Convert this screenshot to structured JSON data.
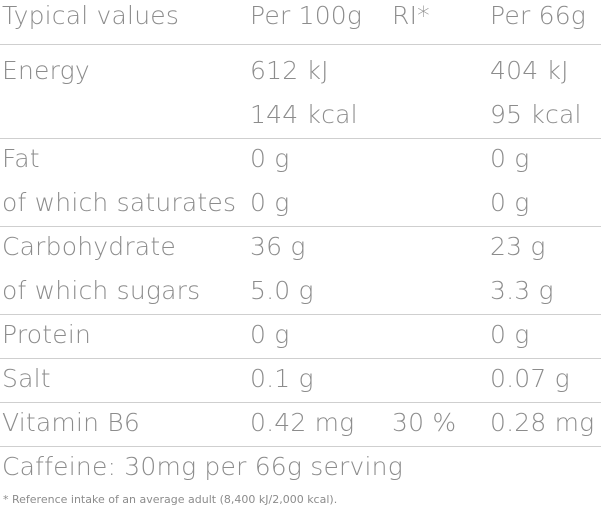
{
  "table": {
    "header": [
      "Typical values",
      "Per 100g",
      "RI*",
      "Per 66g"
    ],
    "groups": [
      [
        {
          "label": "Energy",
          "per100g": "612 kJ",
          "per66g": "404 kJ"
        },
        {
          "per100g": "144 kcal",
          "per66g": "95 kcal"
        }
      ],
      [
        {
          "label": "Fat",
          "per100g": "0 g",
          "per66g": "0 g"
        },
        {
          "label": "of which saturates",
          "per100g": "0 g",
          "per66g": "0 g"
        }
      ],
      [
        {
          "label": "Carbohydrate",
          "per100g": "36 g",
          "per66g": "23 g"
        },
        {
          "label": "of which sugars",
          "per100g": "5.0 g",
          "per66g": "3.3 g"
        }
      ],
      [
        {
          "label": "Protein",
          "per100g": "0 g",
          "per66g": "0 g"
        }
      ],
      [
        {
          "label": "Salt",
          "per100g": "0.1 g",
          "per66g": "0.07 g"
        }
      ],
      [
        {
          "label": "Vitamin B6",
          "per100g": "0.42 mg",
          "ri": "30 %",
          "per66g": "0.28 mg"
        }
      ]
    ]
  },
  "note": "Caffeine: 30mg per 66g serving",
  "footnote": "* Reference intake of an average adult (8,400 kJ/2,000 kcal)."
}
